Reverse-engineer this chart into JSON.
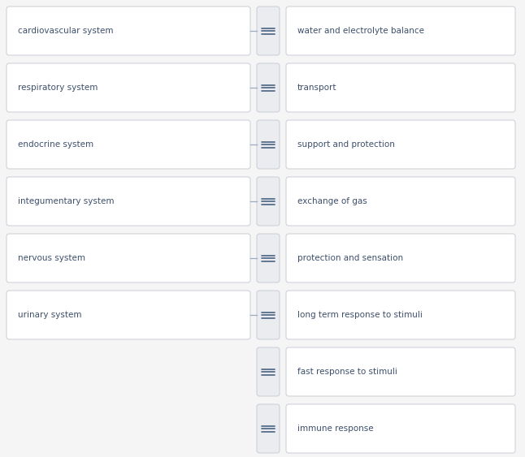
{
  "left_items": [
    "cardiovascular system",
    "respiratory system",
    "endocrine system",
    "integumentary system",
    "nervous system",
    "urinary system"
  ],
  "right_items": [
    "water and electrolyte balance",
    "transport",
    "support and protection",
    "exchange of gas",
    "protection and sensation",
    "long term response to stimuli",
    "fast response to stimuli",
    "immune response"
  ],
  "connected_pairs": [
    0,
    1,
    2,
    3,
    4,
    5
  ],
  "bg_color": "#f5f5f5",
  "box_face_color": "#ffffff",
  "box_edge_color": "#c8cdd5",
  "handle_face_color": "#eaecf0",
  "text_color": "#3d4f6b",
  "handle_color": "#4a6282",
  "line_color": "#9aaabf",
  "font_size": 7.5,
  "font_family": "sans-serif"
}
